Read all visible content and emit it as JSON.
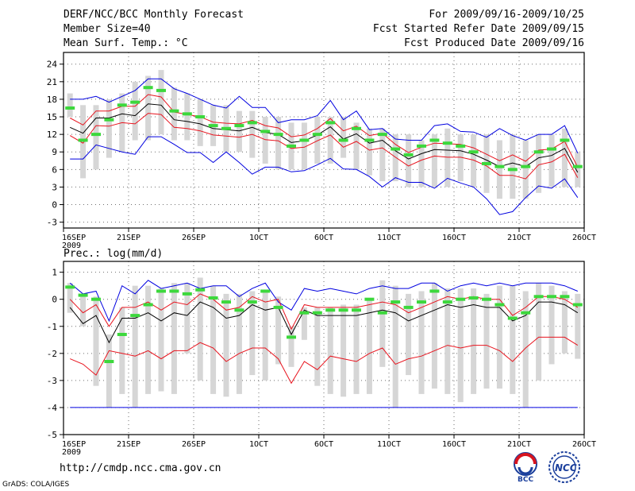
{
  "header": {
    "title": "DERF/NCC/BCC Monthly Forecast",
    "member_size": "Member Size=40",
    "variable": "Mean Surf. Temp.: °C",
    "forecast_period": "For 2009/09/16-2009/10/25",
    "started_refer": "Fcst Started Refer Date 2009/09/15",
    "produced": "Fcst Produced Date 2009/09/16"
  },
  "footer": {
    "url": "http://cmdp.ncc.cma.gov.cn",
    "grads": "GrADS: COLA/IGES",
    "logo_bcc": "BCC",
    "logo_ncc": "NCC"
  },
  "colors": {
    "bar": "#d6d6d6",
    "mean": "#000000",
    "stddev": "#e8141e",
    "extreme": "#0000e0",
    "median": "#3cd83c",
    "grid": "#6e6e6e"
  },
  "chart_data": [
    {
      "type": "ensemble-box",
      "title": "Mean Surf. Temp.: °C",
      "ylim": [
        -4,
        26
      ],
      "yticks": [
        -3,
        0,
        3,
        6,
        9,
        12,
        15,
        18,
        21,
        24
      ],
      "xlim": [
        0,
        40
      ],
      "xticks": [
        {
          "x": 0,
          "label": "16SEP",
          "sub": "2009"
        },
        {
          "x": 5,
          "label": "21SEP"
        },
        {
          "x": 10,
          "label": "26SEP"
        },
        {
          "x": 15,
          "label": "1OCT"
        },
        {
          "x": 20,
          "label": "6OCT"
        },
        {
          "x": 25,
          "label": "11OCT"
        },
        {
          "x": 30,
          "label": "16OCT"
        },
        {
          "x": 35,
          "label": "21OCT"
        },
        {
          "x": 40,
          "label": "26OCT"
        }
      ],
      "days": [
        0,
        1,
        2,
        3,
        4,
        5,
        6,
        7,
        8,
        9,
        10,
        11,
        12,
        13,
        14,
        15,
        16,
        17,
        18,
        19,
        20,
        21,
        22,
        23,
        24,
        25,
        26,
        27,
        28,
        29,
        30,
        31,
        32,
        33,
        34,
        35,
        36,
        37,
        38,
        39
      ],
      "bar_low": [
        15,
        4.5,
        6,
        8,
        9,
        11,
        11,
        12,
        11,
        11,
        10,
        10,
        9,
        9,
        8,
        7,
        6,
        6,
        6,
        7,
        7,
        8,
        6,
        5,
        4,
        4,
        3,
        3,
        3,
        3,
        4,
        3,
        2,
        1,
        1,
        1,
        2,
        3,
        3,
        3
      ],
      "bar_high": [
        19,
        17,
        17,
        18,
        19,
        21,
        22,
        23,
        20,
        19,
        18,
        17,
        17,
        16,
        16,
        15,
        15,
        14,
        14,
        15,
        15,
        15,
        14,
        13,
        13,
        12,
        12,
        11,
        12,
        13,
        12,
        12,
        12,
        11,
        12,
        11,
        12,
        12,
        13,
        9
      ],
      "median": [
        16.5,
        11,
        12,
        14.5,
        17,
        17.5,
        20,
        19.5,
        16,
        15.5,
        15,
        13.5,
        13,
        13.5,
        14,
        12.5,
        12,
        10,
        11,
        12,
        14,
        11,
        13,
        11,
        12,
        9.5,
        8.5,
        10,
        11,
        10.5,
        10,
        9,
        7,
        6.5,
        6,
        6.5,
        9,
        9.5,
        11,
        6.5
      ],
      "mean": [
        13.2,
        12.2,
        14.8,
        14.8,
        15.5,
        15.2,
        17.2,
        17.0,
        14.5,
        14.2,
        13.8,
        13.0,
        12.8,
        12.6,
        13.2,
        12.3,
        12.0,
        10.6,
        10.9,
        11.9,
        13.3,
        11.2,
        12.1,
        10.5,
        11.0,
        9.2,
        7.8,
        8.7,
        9.4,
        9.3,
        9.2,
        8.6,
        7.6,
        6.5,
        7.1,
        6.5,
        8.0,
        8.4,
        9.6,
        5.5
      ],
      "upper_sd": [
        14.8,
        13.6,
        16.0,
        16.0,
        16.8,
        16.8,
        18.8,
        18.4,
        15.8,
        15.4,
        15.0,
        14.1,
        13.9,
        13.8,
        14.4,
        13.5,
        13.1,
        11.6,
        11.9,
        13.0,
        14.7,
        12.6,
        13.4,
        11.8,
        12.2,
        10.3,
        8.9,
        9.8,
        10.5,
        10.4,
        10.3,
        9.7,
        8.6,
        7.5,
        8.5,
        7.4,
        9.3,
        9.5,
        10.8,
        6.4
      ],
      "lower_sd": [
        11.8,
        10.5,
        13.5,
        13.4,
        14.0,
        13.8,
        15.6,
        15.4,
        13.2,
        13.0,
        12.6,
        11.9,
        11.7,
        11.5,
        12.0,
        11.1,
        10.9,
        9.6,
        9.8,
        10.9,
        11.9,
        9.8,
        10.8,
        9.3,
        9.7,
        8.1,
        6.6,
        7.6,
        8.3,
        8.1,
        8.1,
        7.6,
        6.6,
        5.0,
        5.0,
        4.4,
        6.8,
        7.3,
        8.6,
        4.6
      ],
      "max": [
        18.0,
        18.0,
        18.5,
        17.5,
        18.5,
        19.5,
        21.5,
        21.5,
        19.8,
        19.0,
        18.0,
        17.0,
        16.5,
        18.5,
        16.6,
        16.6,
        14.0,
        14.5,
        14.5,
        15.2,
        17.8,
        14.5,
        16.0,
        12.8,
        13.0,
        11.2,
        11.0,
        11.0,
        13.5,
        13.8,
        12.5,
        12.4,
        11.5,
        13.0,
        11.8,
        11.0,
        12.0,
        12.0,
        13.5,
        8.8
      ],
      "min": [
        7.8,
        7.8,
        10.2,
        9.6,
        9.0,
        8.6,
        11.6,
        11.6,
        10.3,
        8.9,
        8.9,
        7.2,
        9.0,
        7.2,
        5.2,
        6.4,
        6.4,
        5.6,
        5.8,
        6.8,
        7.9,
        6.1,
        6.0,
        4.8,
        3.0,
        4.6,
        3.8,
        3.8,
        2.8,
        4.5,
        3.7,
        3.0,
        1.0,
        -1.7,
        -1.2,
        1.2,
        3.2,
        2.8,
        4.4,
        1.2
      ]
    },
    {
      "type": "ensemble-box",
      "title": "Prec.: log(mm/d)",
      "ylim": [
        -5,
        1.4
      ],
      "yticks": [
        -5,
        -4,
        -3,
        -2,
        -1,
        0,
        1
      ],
      "xlim": [
        0,
        40
      ],
      "xticks": [
        {
          "x": 0,
          "label": "16SEP",
          "sub": "2009"
        },
        {
          "x": 5,
          "label": "21SEP"
        },
        {
          "x": 10,
          "label": "26SEP"
        },
        {
          "x": 15,
          "label": "1OCT"
        },
        {
          "x": 20,
          "label": "6OCT"
        },
        {
          "x": 25,
          "label": "11OCT"
        },
        {
          "x": 30,
          "label": "16OCT"
        },
        {
          "x": 35,
          "label": "21OCT"
        },
        {
          "x": 40,
          "label": "26OCT"
        }
      ],
      "days": [
        0,
        1,
        2,
        3,
        4,
        5,
        6,
        7,
        8,
        9,
        10,
        11,
        12,
        13,
        14,
        15,
        16,
        17,
        18,
        19,
        20,
        21,
        22,
        23,
        24,
        25,
        26,
        27,
        28,
        29,
        30,
        31,
        32,
        33,
        34,
        35,
        36,
        37,
        38,
        39
      ],
      "bar_low": [
        -0.5,
        -1,
        -3.2,
        -4,
        -3.5,
        -4,
        -3.5,
        -3.4,
        -3.5,
        -2,
        -3,
        -3.5,
        -3.6,
        -3.5,
        -2.8,
        -3,
        -2.4,
        -2.5,
        -1.5,
        -3.2,
        -3.5,
        -3.6,
        -3.5,
        -3.5,
        -2.5,
        -4,
        -2.8,
        -3.5,
        -3.3,
        -3.5,
        -3.8,
        -3.5,
        -3.3,
        -3.3,
        -3.5,
        -4,
        -3,
        -2.4,
        -2,
        -2.2
      ],
      "bar_high": [
        0.6,
        0.2,
        0.1,
        -1.3,
        -0.3,
        0.5,
        0.5,
        0.4,
        0.6,
        0.6,
        0.8,
        0.5,
        0.2,
        0.2,
        0.3,
        0.3,
        0.1,
        -1,
        -0.3,
        -0.3,
        -0.3,
        -0.2,
        -0.2,
        0,
        0.7,
        0.5,
        0.2,
        0.3,
        0.6,
        0.4,
        0.4,
        0.4,
        0.2,
        0.5,
        0.5,
        0.3,
        0.6,
        0.5,
        0.3,
        0.2
      ],
      "median": [
        0.45,
        0.15,
        0,
        -2.3,
        -1.3,
        -0.6,
        -0.2,
        0.3,
        0.3,
        0.2,
        0.35,
        0.05,
        -0.1,
        -0.4,
        -0.1,
        0.3,
        -0.3,
        -1.4,
        -0.5,
        -0.5,
        -0.4,
        -0.4,
        -0.4,
        0,
        -0.5,
        -0.1,
        -0.3,
        -0.1,
        0.3,
        -0.1,
        0,
        0.05,
        0,
        -0.2,
        -0.7,
        -0.5,
        0.1,
        0.1,
        0.1,
        -0.2
      ],
      "mean": [
        -0.3,
        -0.9,
        -0.6,
        -1.6,
        -0.7,
        -0.7,
        -0.5,
        -0.8,
        -0.5,
        -0.6,
        -0.1,
        -0.3,
        -0.7,
        -0.6,
        -0.2,
        -0.4,
        -0.3,
        -1.3,
        -0.4,
        -0.6,
        -0.6,
        -0.6,
        -0.6,
        -0.5,
        -0.4,
        -0.5,
        -0.8,
        -0.6,
        -0.4,
        -0.2,
        -0.3,
        -0.2,
        -0.3,
        -0.3,
        -0.8,
        -0.6,
        -0.1,
        -0.1,
        -0.2,
        -0.5
      ],
      "upper_sd": [
        0,
        -0.5,
        -0.2,
        -1.0,
        -0.3,
        -0.3,
        -0.1,
        -0.4,
        -0.1,
        -0.2,
        0.2,
        0,
        -0.4,
        -0.3,
        0.1,
        -0.1,
        0,
        -1.1,
        -0.2,
        -0.3,
        -0.3,
        -0.3,
        -0.3,
        -0.2,
        -0.1,
        -0.2,
        -0.5,
        -0.3,
        -0.1,
        0.1,
        0,
        0.1,
        0,
        0,
        -0.6,
        -0.3,
        0.1,
        0.1,
        0,
        -0.3
      ],
      "lower_sd": [
        -2.2,
        -2.4,
        -2.8,
        -1.9,
        -2.0,
        -2.1,
        -1.9,
        -2.2,
        -1.9,
        -1.9,
        -1.6,
        -1.8,
        -2.3,
        -2.0,
        -1.8,
        -1.8,
        -2.2,
        -3.1,
        -2.3,
        -2.6,
        -2.1,
        -2.2,
        -2.3,
        -2.0,
        -1.8,
        -2.4,
        -2.2,
        -2.1,
        -1.9,
        -1.7,
        -1.8,
        -1.7,
        -1.7,
        -1.9,
        -2.3,
        -1.8,
        -1.4,
        -1.4,
        -1.4,
        -1.7
      ],
      "max": [
        0.6,
        0.2,
        0.3,
        -0.8,
        0.5,
        0.2,
        0.7,
        0.4,
        0.5,
        0.6,
        0.4,
        0.5,
        0.5,
        0.1,
        0.4,
        0.6,
        -0.1,
        -0.4,
        0.4,
        0.3,
        0.4,
        0.3,
        0.2,
        0.4,
        0.5,
        0.4,
        0.4,
        0.6,
        0.6,
        0.3,
        0.5,
        0.6,
        0.5,
        0.6,
        0.5,
        0.6,
        0.6,
        0.6,
        0.5,
        0.3
      ],
      "min": [
        -4,
        -4,
        -4,
        -4,
        -4,
        -4,
        -4,
        -4,
        -4,
        -4,
        -4,
        -4,
        -4,
        -4,
        -4,
        -4,
        -4,
        -4,
        -4,
        -4,
        -4,
        -4,
        -4,
        -4,
        -4,
        -4,
        -4,
        -4,
        -4,
        -4,
        -4,
        -4,
        -4,
        -4,
        -4,
        -4,
        -4,
        -4,
        -4,
        -4
      ]
    }
  ]
}
